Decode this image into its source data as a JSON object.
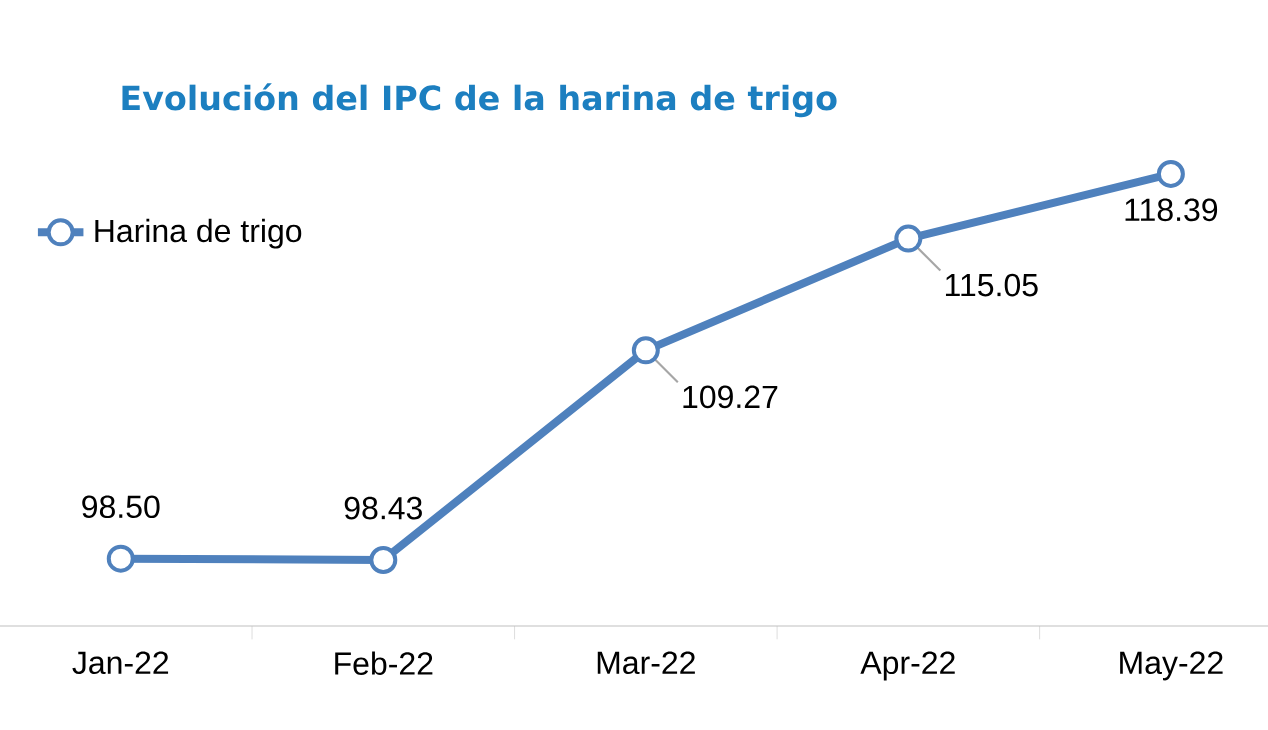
{
  "chart_data": {
    "type": "line",
    "title": "Evolución del IPC de la harina de trigo",
    "categories": [
      "Jan-22",
      "Feb-22",
      "Mar-22",
      "Apr-22",
      "May-22"
    ],
    "series": [
      {
        "name": "Harina de trigo",
        "color": "#4f81bd",
        "values": [
          98.5,
          98.43,
          109.27,
          115.05,
          118.39
        ],
        "value_labels": [
          "98.50",
          "98.43",
          "109.27",
          "115.05",
          "118.39"
        ]
      }
    ],
    "marker": "circle",
    "line_style": "solid",
    "legend": "top left"
  }
}
